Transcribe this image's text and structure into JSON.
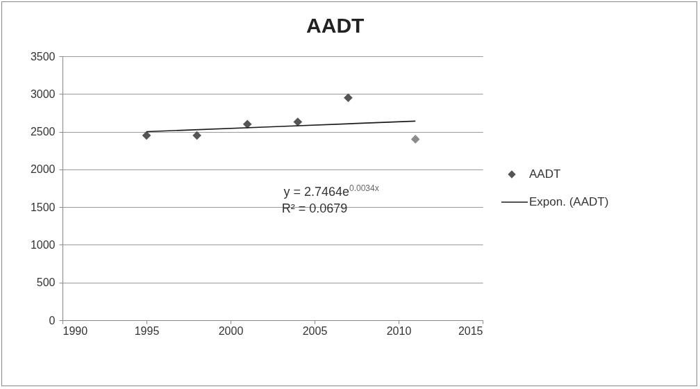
{
  "chart_data": {
    "type": "scatter",
    "title": "AADT",
    "grid": "y",
    "legend": "right",
    "xlim": [
      1990,
      2015
    ],
    "xticks": [
      1990,
      1995,
      2000,
      2005,
      2010,
      2015
    ],
    "ylim": [
      0,
      3500
    ],
    "yticks": [
      0,
      500,
      1000,
      1500,
      2000,
      2500,
      3000,
      3500
    ],
    "annotations": [
      "y = 2.7464e$^{0.0034x}$",
      "R² = 0.0679"
    ],
    "series": [
      {
        "name": "AADT",
        "marker": "diamond",
        "color": "#555555",
        "colors": [
          "#555555",
          "#555555",
          "#555555",
          "#555555",
          "#555555",
          "#8c8c8c"
        ],
        "x": [
          1995,
          1998,
          2001,
          2004,
          2007,
          2011
        ],
        "values": [
          2450,
          2450,
          2600,
          2630,
          2950,
          2400
        ]
      },
      {
        "name": "Expon. (AADT)",
        "type": "line",
        "color": "#1a1a1a",
        "x": [
          1995,
          2003,
          2011
        ],
        "values": [
          2500,
          2570,
          2640
        ]
      }
    ]
  }
}
